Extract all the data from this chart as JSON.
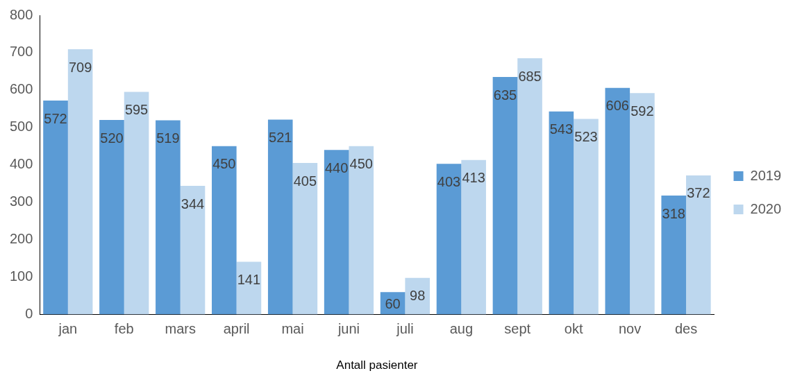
{
  "chart_data": {
    "type": "bar",
    "xlabel": "Antall pasienter",
    "categories": [
      "jan",
      "feb",
      "mars",
      "april",
      "mai",
      "juni",
      "juli",
      "aug",
      "sept",
      "okt",
      "nov",
      "des"
    ],
    "series": [
      {
        "name": "2019",
        "color": "#5b9bd5",
        "values": [
          572,
          520,
          519,
          450,
          521,
          440,
          60,
          403,
          635,
          543,
          606,
          318
        ]
      },
      {
        "name": "2020",
        "color": "#bdd7ee",
        "values": [
          709,
          595,
          344,
          141,
          405,
          450,
          98,
          413,
          685,
          523,
          592,
          372
        ]
      }
    ],
    "ylim": [
      0,
      800
    ],
    "yticks": [
      0,
      100,
      200,
      300,
      400,
      500,
      600,
      700,
      800
    ],
    "legend": "right",
    "data_labels": true
  }
}
